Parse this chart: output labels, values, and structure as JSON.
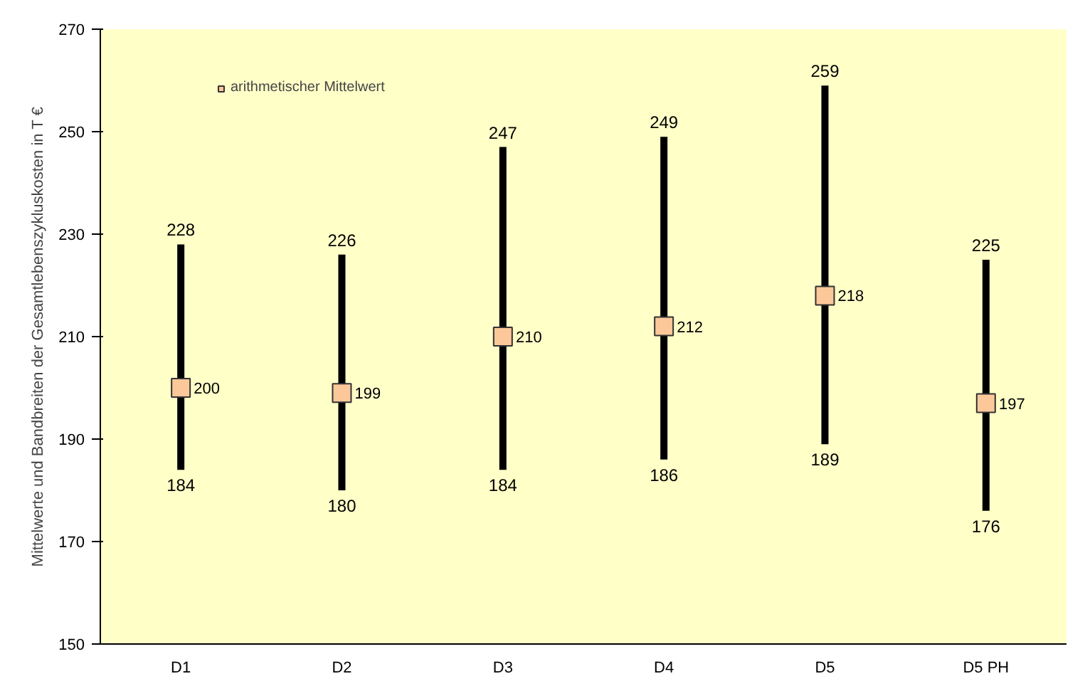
{
  "chart_data": {
    "type": "scatter",
    "ylabel": "Mittelwerte und Bandbreiten der Gesamtlebenszykluskosten in T €",
    "categories": [
      "D1",
      "D2",
      "D3",
      "D4",
      "D5",
      "D5 PH"
    ],
    "series": [
      {
        "name": "arithmetischer Mittelwert",
        "color": "#fcc89a",
        "values": [
          200,
          199,
          210,
          212,
          218,
          197
        ],
        "errors": [
          [
            184,
            228
          ],
          [
            180,
            226
          ],
          [
            184,
            247
          ],
          [
            186,
            249
          ],
          [
            189,
            259
          ],
          [
            176,
            225
          ]
        ]
      }
    ],
    "data_labels": true,
    "annotations": [
      {
        "text": "228",
        "x": "D1",
        "y": 228
      },
      {
        "text": "184",
        "x": "D1",
        "y": 184
      },
      {
        "text": "226",
        "x": "D2",
        "y": 226
      },
      {
        "text": "180",
        "x": "D2",
        "y": 180
      },
      {
        "text": "247",
        "x": "D3",
        "y": 247
      },
      {
        "text": "184",
        "x": "D3",
        "y": 184
      },
      {
        "text": "249",
        "x": "D4",
        "y": 249
      },
      {
        "text": "186",
        "x": "D4",
        "y": 186
      },
      {
        "text": "259",
        "x": "D5",
        "y": 259
      },
      {
        "text": "189",
        "x": "D5",
        "y": 189
      },
      {
        "text": "225",
        "x": "D5 PH",
        "y": 225
      },
      {
        "text": "176",
        "x": "D5 PH",
        "y": 176
      }
    ],
    "ylim": [
      150,
      270
    ],
    "yticks": [
      150,
      170,
      190,
      210,
      230,
      250,
      270
    ],
    "grid": false,
    "legend": "top left",
    "marker": "square"
  }
}
